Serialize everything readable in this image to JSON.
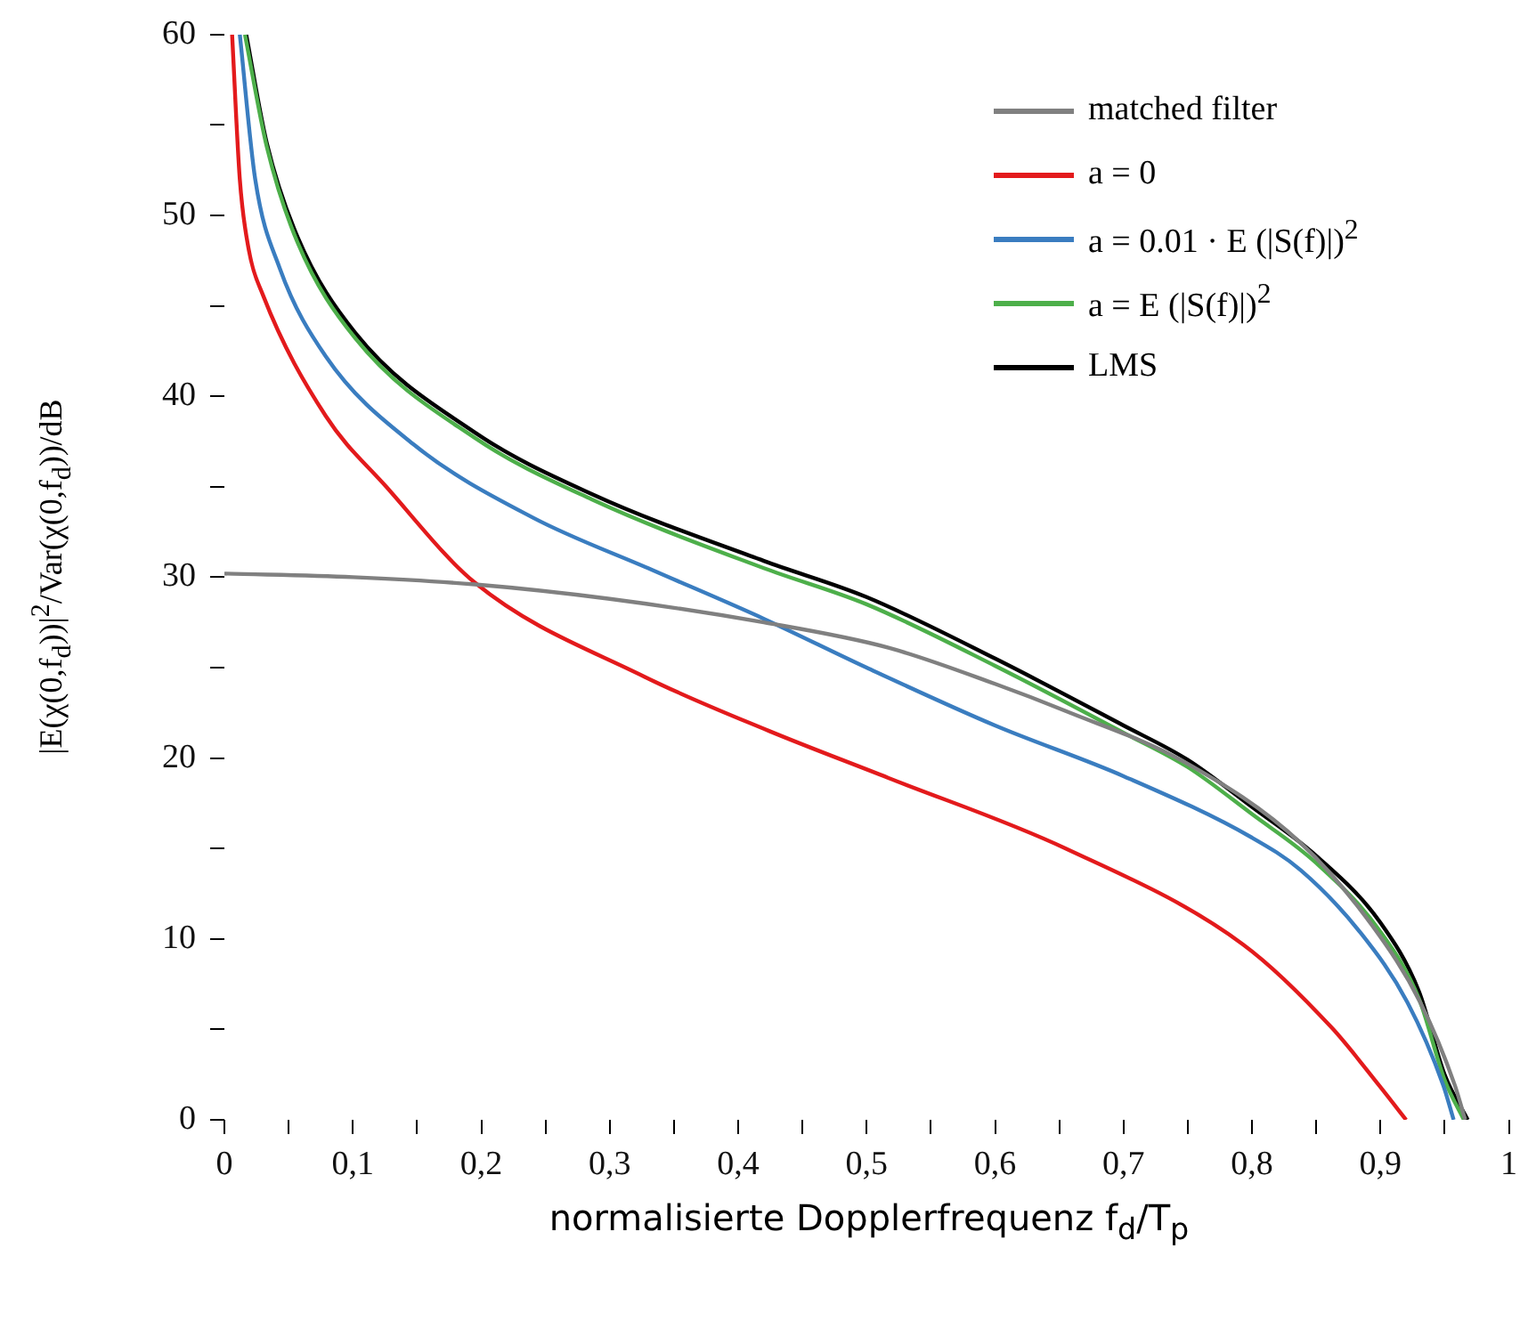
{
  "chart_data": {
    "type": "line",
    "xlabel": "normalisierte Dopplerfrequenz f$_{d}$/T$_{p}$",
    "ylabel": "|E(χ(0,f$_{d}$))|$^{2}$/Var(χ(0,f$_{d}$))/dB",
    "xlim": [
      0,
      1
    ],
    "ylim": [
      0,
      60
    ],
    "xticks": [
      0,
      {
        "value": 0.05,
        "label": null
      },
      {
        "value": 0.1,
        "label": "0,1"
      },
      {
        "value": 0.15,
        "label": null
      },
      {
        "value": 0.2,
        "label": "0,2"
      },
      {
        "value": 0.25,
        "label": null
      },
      {
        "value": 0.3,
        "label": "0,3"
      },
      {
        "value": 0.35,
        "label": null
      },
      {
        "value": 0.4,
        "label": "0,4"
      },
      {
        "value": 0.45,
        "label": null
      },
      {
        "value": 0.5,
        "label": "0,5"
      },
      {
        "value": 0.55,
        "label": null
      },
      {
        "value": 0.6,
        "label": "0,6"
      },
      {
        "value": 0.65,
        "label": null
      },
      {
        "value": 0.7,
        "label": "0,7"
      },
      {
        "value": 0.75,
        "label": null
      },
      {
        "value": 0.8,
        "label": "0,8"
      },
      {
        "value": 0.85,
        "label": null
      },
      {
        "value": 0.9,
        "label": "0,9"
      },
      {
        "value": 0.95,
        "label": null
      },
      1
    ],
    "yticks": [
      0,
      {
        "value": 5,
        "label": null
      },
      10,
      {
        "value": 15,
        "label": null
      },
      20,
      {
        "value": 25,
        "label": null
      },
      30,
      {
        "value": 35,
        "label": null
      },
      40,
      {
        "value": 45,
        "label": null
      },
      50,
      {
        "value": 55,
        "label": null
      },
      60
    ],
    "grid": false,
    "legend": "top right",
    "series": [
      {
        "name": "matched filter",
        "color": "#808080",
        "x": [
          0,
          0.1,
          0.195,
          0.3,
          0.42,
          0.517,
          0.6,
          0.655,
          0.747,
          0.838,
          0.894,
          0.931,
          0.958,
          0.966
        ],
        "values": [
          30.2,
          30.0,
          29.6,
          28.8,
          27.5,
          26.1,
          24.1,
          22.6,
          19.8,
          15.3,
          10.7,
          6.5,
          1.9,
          0
        ]
      },
      {
        "name": "a = 0",
        "color": "#e31a1c",
        "x": [
          0.006,
          0.012,
          0.019,
          0.03,
          0.079,
          0.126,
          0.195,
          0.327,
          0.424,
          0.517,
          0.655,
          0.793,
          0.862,
          0.899,
          0.92
        ],
        "values": [
          60,
          52,
          48.1,
          45.6,
          38.9,
          35,
          29.7,
          24.5,
          21.5,
          18.9,
          15.0,
          9.7,
          5.1,
          1.9,
          0
        ]
      },
      {
        "name": "a = 0.01 · E (|S(f)|)$^{2}$",
        "color": "#3a7dc0",
        "x": [
          0.012,
          0.024,
          0.043,
          0.079,
          0.148,
          0.24,
          0.333,
          0.42,
          0.5,
          0.6,
          0.7,
          0.8,
          0.838,
          0.885,
          0.921,
          0.949,
          0.957
        ],
        "values": [
          60,
          52,
          47.1,
          42.2,
          37.3,
          33.3,
          30.4,
          27.7,
          25.0,
          21.8,
          19.0,
          15.6,
          13.8,
          10.3,
          6.5,
          1.9,
          0
        ]
      },
      {
        "name": "a = E (|S(f)|)$^{2}$",
        "color": "#4daf4a",
        "x": [
          0.016,
          0.033,
          0.057,
          0.102,
          0.195,
          0.286,
          0.42,
          0.5,
          0.6,
          0.7,
          0.75,
          0.8,
          0.85,
          0.9,
          0.93,
          0.95,
          0.965
        ],
        "values": [
          60,
          53.8,
          48.5,
          43.2,
          37.7,
          34.3,
          30.5,
          28.5,
          25.1,
          21.4,
          19.5,
          16.9,
          14.2,
          10.4,
          6.7,
          2.2,
          0
        ]
      },
      {
        "name": "LMS",
        "color": "#000000",
        "x": [
          0.017,
          0.033,
          0.057,
          0.102,
          0.195,
          0.286,
          0.42,
          0.5,
          0.6,
          0.7,
          0.75,
          0.8,
          0.85,
          0.9,
          0.93,
          0.95,
          0.968
        ],
        "values": [
          60,
          54,
          48.8,
          43.5,
          38,
          34.6,
          30.9,
          28.9,
          25.5,
          21.8,
          19.9,
          17.3,
          14.6,
          10.9,
          7.1,
          2.5,
          0
        ]
      }
    ]
  }
}
